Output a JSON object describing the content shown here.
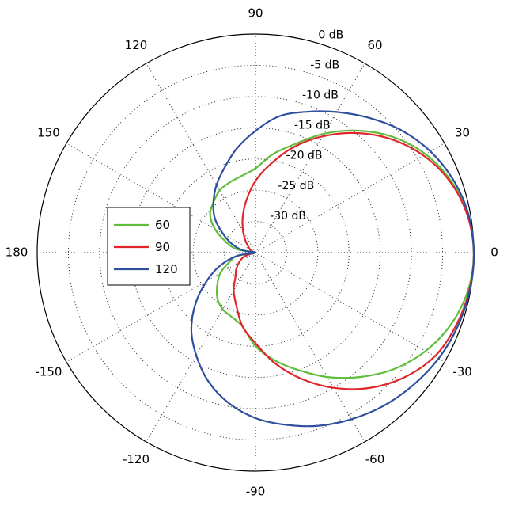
{
  "chart_data": {
    "type": "polar",
    "title": "",
    "angle_unit": "degrees",
    "radial_unit": "dB",
    "rlim": [
      -35,
      0
    ],
    "angle_ticks": [
      0,
      30,
      60,
      90,
      120,
      150,
      180,
      -150,
      -120,
      -90,
      -60,
      -30
    ],
    "angle_tick_labels": [
      "0",
      "30",
      "60",
      "90",
      "120",
      "150",
      "180",
      "-150",
      "-120",
      "-90",
      "-60",
      "-30"
    ],
    "r_ticks": [
      0,
      -5,
      -10,
      -15,
      -20,
      -25,
      -30
    ],
    "r_tick_labels": [
      "0 dB",
      "-5 dB",
      "-10 dB",
      "-15 dB",
      "-20 dB",
      "-25 dB",
      "-30 dB"
    ],
    "grid": true,
    "legend": {
      "placement": "left",
      "entries": [
        "60",
        "90",
        "120"
      ]
    },
    "series": [
      {
        "name": "60",
        "color": "#5fbd3c",
        "points": [
          [
            0,
            0
          ],
          [
            10,
            -0.4
          ],
          [
            20,
            -1.6
          ],
          [
            30,
            -3.5
          ],
          [
            40,
            -6.2
          ],
          [
            50,
            -9.5
          ],
          [
            60,
            -13
          ],
          [
            70,
            -16.5
          ],
          [
            80,
            -19
          ],
          [
            90,
            -21.5
          ],
          [
            100,
            -22.5
          ],
          [
            110,
            -23
          ],
          [
            120,
            -23.5
          ],
          [
            130,
            -24.5
          ],
          [
            140,
            -25.5
          ],
          [
            150,
            -27.5
          ],
          [
            160,
            -30
          ],
          [
            170,
            -32
          ],
          [
            180,
            -35
          ],
          [
            -170,
            -32
          ],
          [
            -160,
            -30.5
          ],
          [
            -150,
            -28.5
          ],
          [
            -140,
            -27
          ],
          [
            -130,
            -25.5
          ],
          [
            -120,
            -24.5
          ],
          [
            -110,
            -24
          ],
          [
            -100,
            -23
          ],
          [
            -90,
            -20
          ],
          [
            -80,
            -17.5
          ],
          [
            -70,
            -15
          ],
          [
            -60,
            -12
          ],
          [
            -50,
            -9
          ],
          [
            -40,
            -6
          ],
          [
            -30,
            -3.5
          ],
          [
            -20,
            -1.6
          ],
          [
            -10,
            -0.4
          ],
          [
            0,
            0
          ]
        ]
      },
      {
        "name": "90",
        "color": "#e0262b",
        "points": [
          [
            0,
            0
          ],
          [
            10,
            -0.5
          ],
          [
            20,
            -1.8
          ],
          [
            30,
            -3.9
          ],
          [
            40,
            -6.7
          ],
          [
            50,
            -10
          ],
          [
            60,
            -13.5
          ],
          [
            70,
            -17
          ],
          [
            80,
            -20.5
          ],
          [
            90,
            -23.5
          ],
          [
            100,
            -26.5
          ],
          [
            110,
            -29
          ],
          [
            120,
            -31
          ],
          [
            130,
            -32.5
          ],
          [
            140,
            -33.5
          ],
          [
            150,
            -34
          ],
          [
            160,
            -34.5
          ],
          [
            170,
            -35
          ],
          [
            180,
            -35
          ],
          [
            -170,
            -34.5
          ],
          [
            -160,
            -33
          ],
          [
            -150,
            -32
          ],
          [
            -140,
            -31
          ],
          [
            -130,
            -30
          ],
          [
            -120,
            -28
          ],
          [
            -110,
            -26
          ],
          [
            -100,
            -23
          ],
          [
            -90,
            -20.5
          ],
          [
            -80,
            -17
          ],
          [
            -70,
            -13.5
          ],
          [
            -60,
            -10
          ],
          [
            -50,
            -6.7
          ],
          [
            -40,
            -3.9
          ],
          [
            -30,
            -1.8
          ],
          [
            -20,
            -0.8
          ],
          [
            -10,
            -0.2
          ],
          [
            0,
            0
          ]
        ]
      },
      {
        "name": "120",
        "color": "#2e4f9e",
        "points": [
          [
            0,
            0
          ],
          [
            10,
            -0.3
          ],
          [
            20,
            -1.2
          ],
          [
            30,
            -2.6
          ],
          [
            40,
            -4.5
          ],
          [
            50,
            -6.8
          ],
          [
            60,
            -9
          ],
          [
            70,
            -11
          ],
          [
            80,
            -12.8
          ],
          [
            90,
            -15.5
          ],
          [
            100,
            -18
          ],
          [
            110,
            -20.5
          ],
          [
            120,
            -22.5
          ],
          [
            130,
            -24.5
          ],
          [
            140,
            -26.5
          ],
          [
            150,
            -29
          ],
          [
            160,
            -31
          ],
          [
            170,
            -33
          ],
          [
            180,
            -35
          ],
          [
            -170,
            -32
          ],
          [
            -160,
            -29
          ],
          [
            -150,
            -26
          ],
          [
            -140,
            -22.5
          ],
          [
            -130,
            -19
          ],
          [
            -120,
            -16
          ],
          [
            -110,
            -13
          ],
          [
            -100,
            -10.5
          ],
          [
            -90,
            -8.5
          ],
          [
            -80,
            -7
          ],
          [
            -70,
            -5.5
          ],
          [
            -60,
            -4.2
          ],
          [
            -50,
            -3
          ],
          [
            -40,
            -2
          ],
          [
            -30,
            -1.1
          ],
          [
            -20,
            -0.5
          ],
          [
            -10,
            -0.1
          ],
          [
            0,
            0
          ]
        ]
      }
    ]
  }
}
